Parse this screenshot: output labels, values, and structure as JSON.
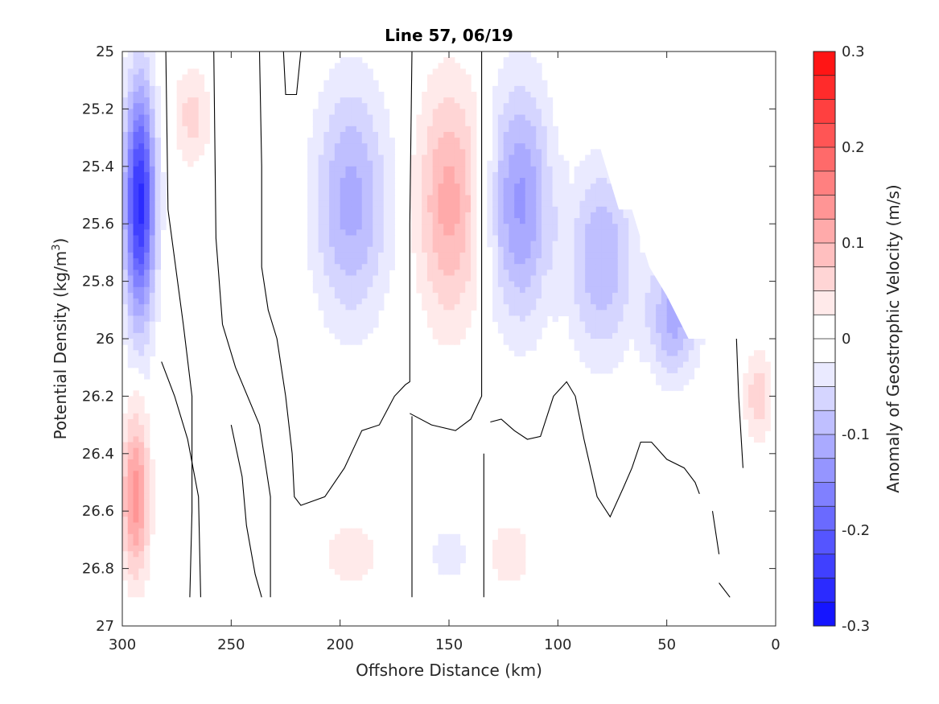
{
  "chart_data": {
    "type": "contour",
    "title": "Line 57, 06/19",
    "xlabel": "Offshore Distance (km)",
    "ylabel_main": "Potential Density (kg/m",
    "ylabel_sup": "3",
    "ylabel_close": ")",
    "xlim": [
      300,
      0
    ],
    "ylim": [
      25,
      27
    ],
    "y_reversed": true,
    "x_ticks": [
      300,
      250,
      200,
      150,
      100,
      50,
      0
    ],
    "y_ticks": [
      25,
      25.2,
      25.4,
      25.6,
      25.8,
      26,
      26.2,
      26.4,
      26.6,
      26.8,
      27
    ],
    "y_tick_labels": [
      "25",
      "25.2",
      "25.4",
      "25.6",
      "25.8",
      "26",
      "26.2",
      "26.4",
      "26.6",
      "26.8",
      "27"
    ],
    "colorbar": {
      "label": "Anomaly of Geostrophic Velocity (m/s)",
      "range": [
        -0.3,
        0.3
      ],
      "step": 0.025,
      "ticks": [
        -0.3,
        -0.2,
        -0.1,
        0,
        0.1,
        0.2,
        0.3
      ],
      "tick_labels": [
        "-0.3",
        "-0.2",
        "-0.1",
        "0",
        "0.1",
        "0.2",
        "0.3"
      ],
      "negative_color": "#0000ff",
      "positive_color": "#ff0000"
    },
    "data_mask": {
      "bottom_density": 26.9,
      "upper_right_boundary": [
        [
          100,
          25.0
        ],
        [
          90,
          25.05
        ],
        [
          80,
          25.35
        ],
        [
          72,
          25.55
        ],
        [
          66,
          25.55
        ],
        [
          58,
          25.75
        ],
        [
          50,
          25.85
        ],
        [
          40,
          26.0
        ],
        [
          0,
          26.0
        ]
      ]
    },
    "features": [
      {
        "name": "nearshore-jet",
        "x": 292,
        "y_top": 25.0,
        "y_bot": 26.05,
        "half_width": 9,
        "peak": -0.26
      },
      {
        "name": "deep-offshore-positive",
        "x": 294,
        "y_top": 26.2,
        "y_bot": 26.9,
        "half_width": 8,
        "peak": 0.14
      },
      {
        "name": "offshore-positive-cell",
        "x": 268,
        "y_top": 25.0,
        "y_bot": 25.45,
        "half_width": 11,
        "peak": 0.06
      },
      {
        "name": "eddy-1-negative",
        "x": 195,
        "y_top": 25.0,
        "y_bot": 26.05,
        "half_width": 22,
        "peak": -0.11
      },
      {
        "name": "eddy-2-positive",
        "x": 150,
        "y_top": 25.0,
        "y_bot": 26.05,
        "half_width": 18,
        "peak": 0.11
      },
      {
        "name": "eddy-3-negative",
        "x": 117,
        "y_top": 25.0,
        "y_bot": 26.05,
        "half_width": 18,
        "peak": -0.13
      },
      {
        "name": "eddy-4-negative",
        "x": 80,
        "y_top": 25.3,
        "y_bot": 26.15,
        "half_width": 20,
        "peak": -0.1
      },
      {
        "name": "eddy-5-negative",
        "x": 47,
        "y_top": 25.65,
        "y_bot": 26.2,
        "half_width": 15,
        "peak": -0.11
      },
      {
        "name": "inshore-positive",
        "x": 8,
        "y_top": 26.0,
        "y_bot": 26.4,
        "half_width": 8,
        "peak": 0.07
      },
      {
        "name": "deep-positive-1",
        "x": 195,
        "y_top": 26.6,
        "y_bot": 26.9,
        "half_width": 15,
        "peak": 0.05
      },
      {
        "name": "deep-negative",
        "x": 150,
        "y_top": 26.6,
        "y_bot": 26.9,
        "half_width": 12,
        "peak": -0.04
      },
      {
        "name": "deep-positive-2",
        "x": 122,
        "y_top": 26.6,
        "y_bot": 26.9,
        "half_width": 12,
        "peak": 0.05
      }
    ],
    "zero_contours": [
      [
        [
          280,
          25.0
        ],
        [
          279,
          25.55
        ],
        [
          272,
          25.95
        ],
        [
          268,
          26.2
        ],
        [
          268,
          26.6
        ],
        [
          269,
          26.9
        ]
      ],
      [
        [
          258,
          25.0
        ],
        [
          257,
          25.65
        ],
        [
          254,
          25.95
        ],
        [
          248,
          26.1
        ],
        [
          237,
          26.3
        ],
        [
          232,
          26.55
        ],
        [
          232,
          26.9
        ]
      ],
      [
        [
          282,
          26.08
        ],
        [
          276,
          26.2
        ],
        [
          270,
          26.35
        ],
        [
          265,
          26.55
        ],
        [
          264,
          26.9
        ]
      ],
      [
        [
          250,
          26.3
        ],
        [
          245,
          26.48
        ],
        [
          243,
          26.65
        ],
        [
          239,
          26.82
        ],
        [
          236,
          26.9
        ]
      ],
      [
        [
          237,
          25.0
        ],
        [
          236,
          25.4
        ],
        [
          236,
          25.75
        ],
        [
          233,
          25.9
        ],
        [
          229,
          26.0
        ],
        [
          225,
          26.2
        ],
        [
          222,
          26.4
        ],
        [
          221,
          26.55
        ],
        [
          218,
          26.58
        ],
        [
          207,
          26.55
        ],
        [
          198,
          26.45
        ],
        [
          190,
          26.32
        ],
        [
          182,
          26.3
        ],
        [
          175,
          26.2
        ],
        [
          170,
          26.16
        ],
        [
          168,
          26.15
        ],
        [
          168,
          25.6
        ],
        [
          167,
          25.0
        ]
      ],
      [
        [
          168,
          26.26
        ],
        [
          158,
          26.3
        ],
        [
          147,
          26.32
        ],
        [
          140,
          26.28
        ],
        [
          135,
          26.2
        ],
        [
          135,
          25.0
        ]
      ],
      [
        [
          226,
          25.0
        ],
        [
          225,
          25.15
        ],
        [
          220,
          25.15
        ],
        [
          218,
          25.0
        ]
      ],
      [
        [
          167,
          26.27
        ],
        [
          167,
          26.9
        ]
      ],
      [
        [
          134,
          26.4
        ],
        [
          134,
          26.9
        ]
      ],
      [
        [
          131,
          26.29
        ],
        [
          126,
          26.28
        ],
        [
          120,
          26.32
        ],
        [
          114,
          26.35
        ],
        [
          108,
          26.34
        ],
        [
          102,
          26.2
        ],
        [
          96,
          26.15
        ],
        [
          92,
          26.2
        ],
        [
          88,
          26.35
        ],
        [
          82,
          26.55
        ],
        [
          76,
          26.62
        ],
        [
          70,
          26.52
        ],
        [
          66,
          26.45
        ],
        [
          62,
          26.36
        ],
        [
          57,
          26.36
        ],
        [
          50,
          26.42
        ],
        [
          42,
          26.45
        ],
        [
          37,
          26.5
        ],
        [
          35,
          26.54
        ]
      ],
      [
        [
          18,
          26.0
        ],
        [
          17,
          26.2
        ],
        [
          15,
          26.45
        ]
      ],
      [
        [
          29,
          26.6
        ],
        [
          26,
          26.75
        ]
      ],
      [
        [
          26,
          26.85
        ],
        [
          21,
          26.9
        ]
      ]
    ]
  }
}
